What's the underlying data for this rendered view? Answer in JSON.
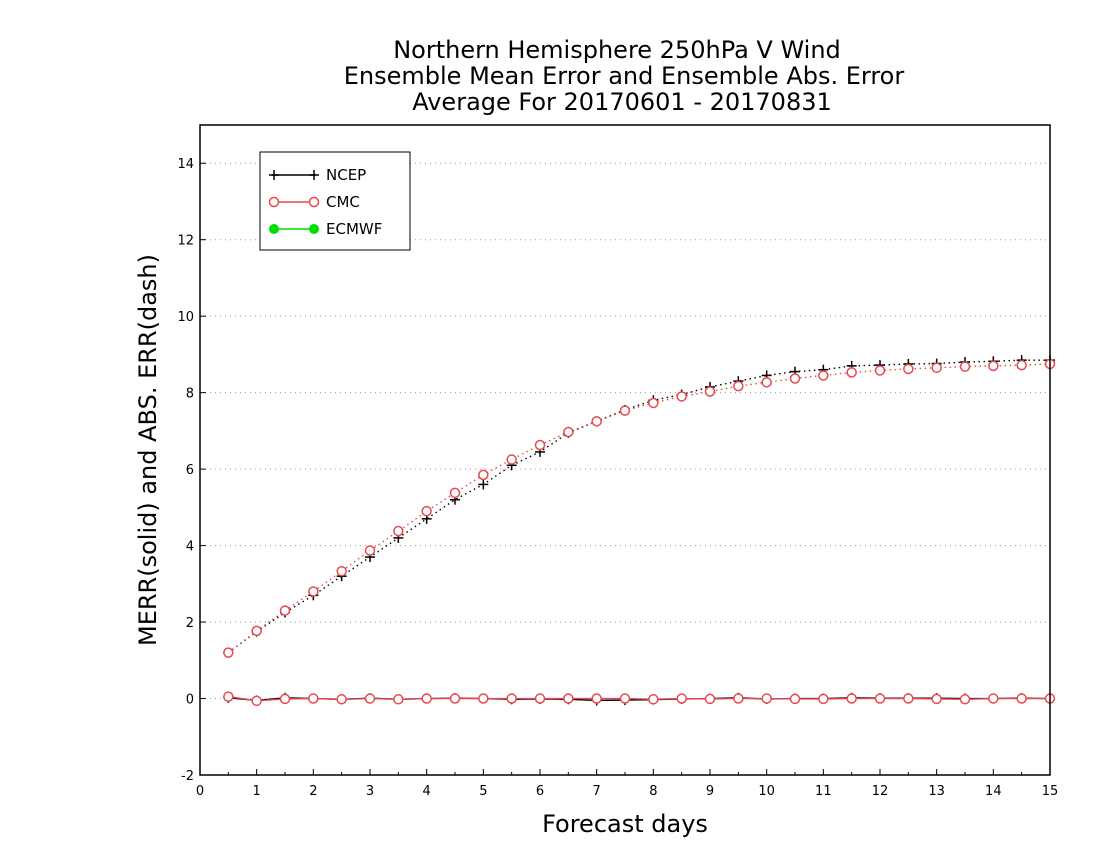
{
  "chart_data": {
    "type": "line",
    "title_lines": [
      "Northern Hemisphere 250hPa V Wind",
      "Ensemble Mean Error and Ensemble Abs. Error",
      "Average For 20170601 - 20170831"
    ],
    "xlabel": "Forecast days",
    "ylabel": "MERR(solid) and ABS. ERR(dash)",
    "xlim": [
      0,
      15
    ],
    "ylim": [
      -2,
      15
    ],
    "xticks": [
      0,
      1,
      2,
      3,
      4,
      5,
      6,
      7,
      8,
      9,
      10,
      11,
      12,
      13,
      14,
      15
    ],
    "yticks": [
      -2,
      0,
      2,
      4,
      6,
      8,
      10,
      12,
      14
    ],
    "grid": "horizontal-dotted",
    "legend_position": "top-left",
    "x": [
      0.5,
      1,
      1.5,
      2,
      2.5,
      3,
      3.5,
      4,
      4.5,
      5,
      5.5,
      6,
      6.5,
      7,
      7.5,
      8,
      8.5,
      9,
      9.5,
      10,
      10.5,
      11,
      11.5,
      12,
      12.5,
      13,
      13.5,
      14,
      14.5,
      15
    ],
    "series": [
      {
        "name": "NCEP",
        "color": "#000000",
        "marker": "plus",
        "merr": [
          0.02,
          -0.05,
          0.02,
          0.0,
          -0.02,
          0.01,
          -0.02,
          0.0,
          0.01,
          0.0,
          -0.02,
          -0.01,
          -0.02,
          -0.05,
          -0.04,
          -0.03,
          -0.01,
          0.0,
          0.02,
          -0.01,
          0.0,
          0.0,
          0.02,
          0.01,
          0.01,
          0.01,
          0.0,
          0.0,
          0.01,
          0.0
        ],
        "abs_err": [
          1.2,
          1.75,
          2.25,
          2.7,
          3.2,
          3.7,
          4.2,
          4.7,
          5.2,
          5.6,
          6.1,
          6.45,
          6.95,
          7.25,
          7.55,
          7.8,
          7.95,
          8.15,
          8.3,
          8.45,
          8.55,
          8.6,
          8.7,
          8.72,
          8.75,
          8.76,
          8.8,
          8.82,
          8.85,
          8.85
        ]
      },
      {
        "name": "CMC",
        "color": "#e8484d",
        "marker": "open-circle",
        "merr": [
          0.05,
          -0.06,
          -0.01,
          0.0,
          -0.02,
          0.0,
          -0.02,
          0.0,
          0.0,
          0.0,
          0.0,
          0.0,
          0.0,
          0.0,
          0.0,
          -0.02,
          0.0,
          -0.01,
          0.0,
          0.0,
          -0.01,
          -0.01,
          0.0,
          0.0,
          0.0,
          -0.01,
          -0.02,
          0.0,
          0.0,
          0.0
        ],
        "abs_err": [
          1.2,
          1.77,
          2.3,
          2.8,
          3.33,
          3.87,
          4.38,
          4.9,
          5.38,
          5.85,
          6.25,
          6.63,
          6.97,
          7.25,
          7.53,
          7.73,
          7.9,
          8.03,
          8.17,
          8.27,
          8.37,
          8.45,
          8.53,
          8.58,
          8.62,
          8.65,
          8.68,
          8.7,
          8.72,
          8.75
        ]
      },
      {
        "name": "ECMWF",
        "color": "#00dd00",
        "marker": "filled-circle",
        "merr": [],
        "abs_err": []
      }
    ]
  }
}
